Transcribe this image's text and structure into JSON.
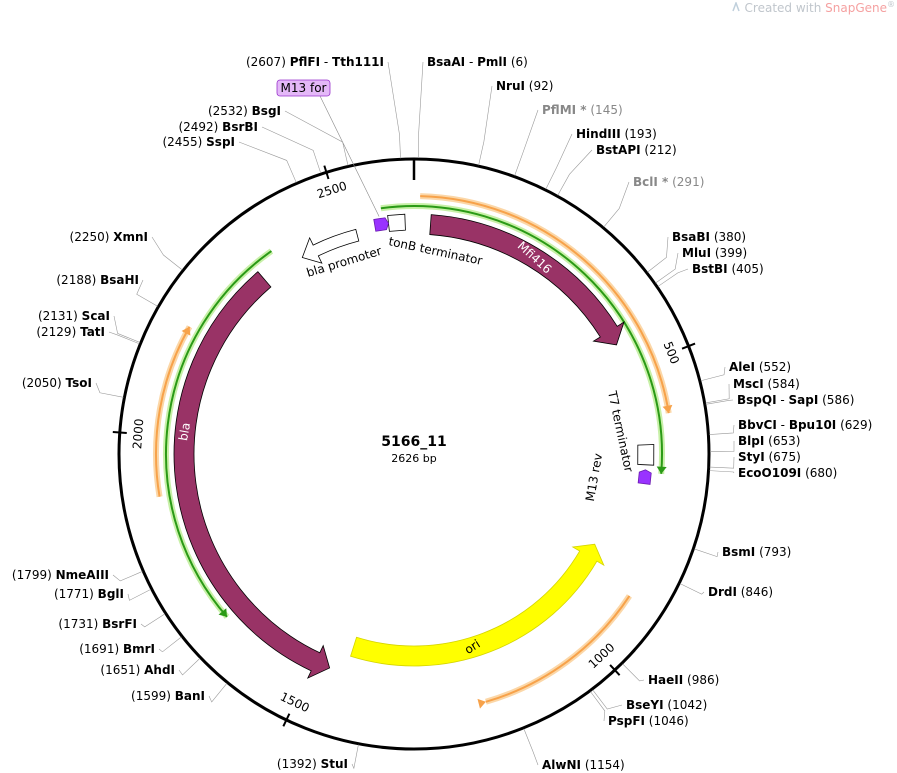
{
  "watermark": {
    "prefix": "Created with ",
    "brand": "SnapGene",
    "suffix": "®"
  },
  "plasmid": {
    "name": "5166_11",
    "length_label": "2626 bp",
    "length": 2626
  },
  "ticks": [
    {
      "pos": 500,
      "label": "500"
    },
    {
      "pos": 1000,
      "label": "1000"
    },
    {
      "pos": 1500,
      "label": "1500"
    },
    {
      "pos": 2000,
      "label": "2000"
    },
    {
      "pos": 2500,
      "label": "2500"
    }
  ],
  "features": [
    {
      "name": "Mfi416",
      "start": 30,
      "end": 450,
      "strand": 1,
      "color": "#993366",
      "type": "cds"
    },
    {
      "name": "bla",
      "start": 1470,
      "end": 2330,
      "strand": -1,
      "color": "#993366",
      "type": "cds"
    },
    {
      "name": "ori",
      "start": 850,
      "end": 1440,
      "strand": -1,
      "color": "#ffff00",
      "type": "origin"
    },
    {
      "name": "bla promoter",
      "start": 2410,
      "end": 2520,
      "strand": -1,
      "color": "#ffffff",
      "type": "promoter"
    },
    {
      "name": "tonB terminator",
      "start": 2580,
      "end": 2610,
      "strand": 0,
      "color": "#ffffff",
      "type": "terminator"
    },
    {
      "name": "T7 terminator",
      "start": 640,
      "end": 676,
      "strand": 0,
      "color": "#ffffff",
      "type": "terminator"
    },
    {
      "name": "M13 for",
      "start": 2555,
      "end": 2575,
      "strand": 1,
      "color": "#9933ff",
      "type": "primer"
    },
    {
      "name": "M13 rev",
      "start": 690,
      "end": 710,
      "strand": -1,
      "color": "#9933ff",
      "type": "primer"
    }
  ],
  "orfs": [
    {
      "start": 10,
      "end": 590,
      "strand": 1,
      "color": "#f7a24a"
    },
    {
      "start": 1195,
      "end": 900,
      "strand": -1,
      "color": "#f7a24a"
    },
    {
      "start": 1900,
      "end": 2185,
      "strand": 1,
      "color": "#f7a24a"
    }
  ],
  "green_lines": [
    {
      "start": 2570,
      "end": 690,
      "strand": 1
    },
    {
      "start": 1670,
      "end": 2370,
      "strand": -1
    }
  ],
  "sites": [
    {
      "name": "PflFI",
      "name2": "Tth111I",
      "pos": 2607,
      "pos_label": "(2607)",
      "side": "L",
      "gray": false
    },
    {
      "name": "BsaAI",
      "name2": "PmlI",
      "pos": 6,
      "pos_label": "(6)",
      "side": "R",
      "gray": false
    },
    {
      "name": "NruI",
      "pos": 92,
      "pos_label": "(92)",
      "side": "R",
      "gray": false
    },
    {
      "name": "PflMI *",
      "pos": 145,
      "pos_label": "(145)",
      "side": "R",
      "gray": true
    },
    {
      "name": "HindIII",
      "pos": 193,
      "pos_label": "(193)",
      "side": "R",
      "gray": false
    },
    {
      "name": "BstAPI",
      "pos": 212,
      "pos_label": "(212)",
      "side": "R",
      "gray": false
    },
    {
      "name": "BclI *",
      "pos": 291,
      "pos_label": "(291)",
      "side": "R",
      "gray": true
    },
    {
      "name": "BsaBI",
      "pos": 380,
      "pos_label": "(380)",
      "side": "R",
      "gray": false
    },
    {
      "name": "MluI",
      "pos": 399,
      "pos_label": "(399)",
      "side": "R",
      "gray": false
    },
    {
      "name": "BstBI",
      "pos": 405,
      "pos_label": "(405)",
      "side": "R",
      "gray": false
    },
    {
      "name": "AleI",
      "pos": 552,
      "pos_label": "(552)",
      "side": "R",
      "gray": false
    },
    {
      "name": "MscI",
      "pos": 584,
      "pos_label": "(584)",
      "side": "R",
      "gray": false
    },
    {
      "name": "BspQI",
      "name2": "SapI",
      "pos": 586,
      "pos_label": "(586)",
      "side": "R",
      "gray": false
    },
    {
      "name": "BbvCI",
      "name2": "Bpu10I",
      "pos": 629,
      "pos_label": "(629)",
      "side": "R",
      "gray": false
    },
    {
      "name": "BlpI",
      "pos": 653,
      "pos_label": "(653)",
      "side": "R",
      "gray": false
    },
    {
      "name": "StyI",
      "pos": 675,
      "pos_label": "(675)",
      "side": "R",
      "gray": false
    },
    {
      "name": "EcoO109I",
      "pos": 680,
      "pos_label": "(680)",
      "side": "R",
      "gray": false
    },
    {
      "name": "BsmI",
      "pos": 793,
      "pos_label": "(793)",
      "side": "R",
      "gray": false
    },
    {
      "name": "DrdI",
      "pos": 846,
      "pos_label": "(846)",
      "side": "R",
      "gray": false
    },
    {
      "name": "HaeII",
      "pos": 986,
      "pos_label": "(986)",
      "side": "R",
      "gray": false
    },
    {
      "name": "BseYI",
      "pos": 1042,
      "pos_label": "(1042)",
      "side": "R",
      "gray": false
    },
    {
      "name": "PspFI",
      "pos": 1046,
      "pos_label": "(1046)",
      "side": "R",
      "gray": false
    },
    {
      "name": "AlwNI",
      "pos": 1154,
      "pos_label": "(1154)",
      "side": "R",
      "gray": false
    },
    {
      "name": "StuI",
      "pos": 1392,
      "pos_label": "(1392)",
      "side": "L",
      "gray": false
    },
    {
      "name": "BanI",
      "pos": 1599,
      "pos_label": "(1599)",
      "side": "L",
      "gray": false
    },
    {
      "name": "AhdI",
      "pos": 1651,
      "pos_label": "(1651)",
      "side": "L",
      "gray": false
    },
    {
      "name": "BmrI",
      "pos": 1691,
      "pos_label": "(1691)",
      "side": "L",
      "gray": false
    },
    {
      "name": "BsrFI",
      "pos": 1731,
      "pos_label": "(1731)",
      "side": "L",
      "gray": false
    },
    {
      "name": "BglI",
      "pos": 1771,
      "pos_label": "(1771)",
      "side": "L",
      "gray": false
    },
    {
      "name": "NmeAIII",
      "pos": 1799,
      "pos_label": "(1799)",
      "side": "L",
      "gray": false
    },
    {
      "name": "TsoI",
      "pos": 2050,
      "pos_label": "(2050)",
      "side": "L",
      "gray": false
    },
    {
      "name": "TatI",
      "pos": 2129,
      "pos_label": "(2129)",
      "side": "L",
      "gray": false
    },
    {
      "name": "ScaI",
      "pos": 2131,
      "pos_label": "(2131)",
      "side": "L",
      "gray": false
    },
    {
      "name": "BsaHI",
      "pos": 2188,
      "pos_label": "(2188)",
      "side": "L",
      "gray": false
    },
    {
      "name": "XmnI",
      "pos": 2250,
      "pos_label": "(2250)",
      "side": "L",
      "gray": false
    },
    {
      "name": "SspI",
      "pos": 2455,
      "pos_label": "(2455)",
      "side": "L",
      "gray": false
    },
    {
      "name": "BsrBI",
      "pos": 2492,
      "pos_label": "(2492)",
      "side": "L",
      "gray": false
    },
    {
      "name": "BsgI",
      "pos": 2532,
      "pos_label": "(2532)",
      "side": "L",
      "gray": false
    }
  ]
}
